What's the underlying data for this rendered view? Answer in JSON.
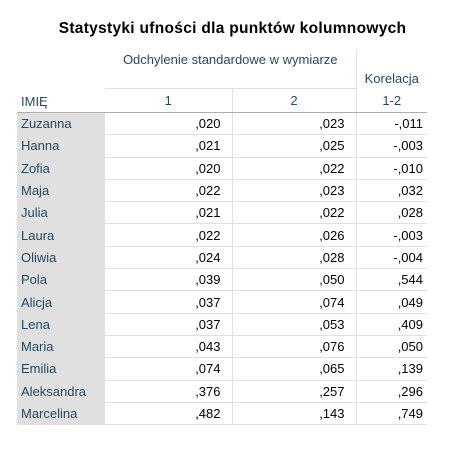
{
  "title": "Statystyki ufności dla punktów kolumnowych",
  "header": {
    "group_label": "Odchylenie standardowe w wymiarze",
    "correlation_label": "Korelacja",
    "row_header": "IMIĘ",
    "sub": [
      "1",
      "2",
      "1-2"
    ]
  },
  "rows": [
    {
      "name": "Zuzanna",
      "v1": ",020",
      "v2": ",023",
      "corr": "-,011"
    },
    {
      "name": "Hanna",
      "v1": ",021",
      "v2": ",025",
      "corr": "-,003"
    },
    {
      "name": "Zofia",
      "v1": ",020",
      "v2": ",022",
      "corr": "-,010"
    },
    {
      "name": "Maja",
      "v1": ",022",
      "v2": ",023",
      "corr": ",032"
    },
    {
      "name": "Julia",
      "v1": ",021",
      "v2": ",022",
      "corr": ",028"
    },
    {
      "name": "Laura",
      "v1": ",022",
      "v2": ",026",
      "corr": "-,003"
    },
    {
      "name": "Oliwia",
      "v1": ",024",
      "v2": ",028",
      "corr": "-,004"
    },
    {
      "name": "Pola",
      "v1": ",039",
      "v2": ",050",
      "corr": ",544"
    },
    {
      "name": "Alicja",
      "v1": ",037",
      "v2": ",074",
      "corr": ",049"
    },
    {
      "name": "Lena",
      "v1": ",037",
      "v2": ",053",
      "corr": ",409"
    },
    {
      "name": "Maria",
      "v1": ",043",
      "v2": ",076",
      "corr": ",050"
    },
    {
      "name": "Emilia",
      "v1": ",074",
      "v2": ",065",
      "corr": ",139"
    },
    {
      "name": "Aleksandra",
      "v1": ",376",
      "v2": ",257",
      "corr": ",296"
    },
    {
      "name": "Marcelina",
      "v1": ",482",
      "v2": ",143",
      "corr": ",749"
    }
  ]
}
